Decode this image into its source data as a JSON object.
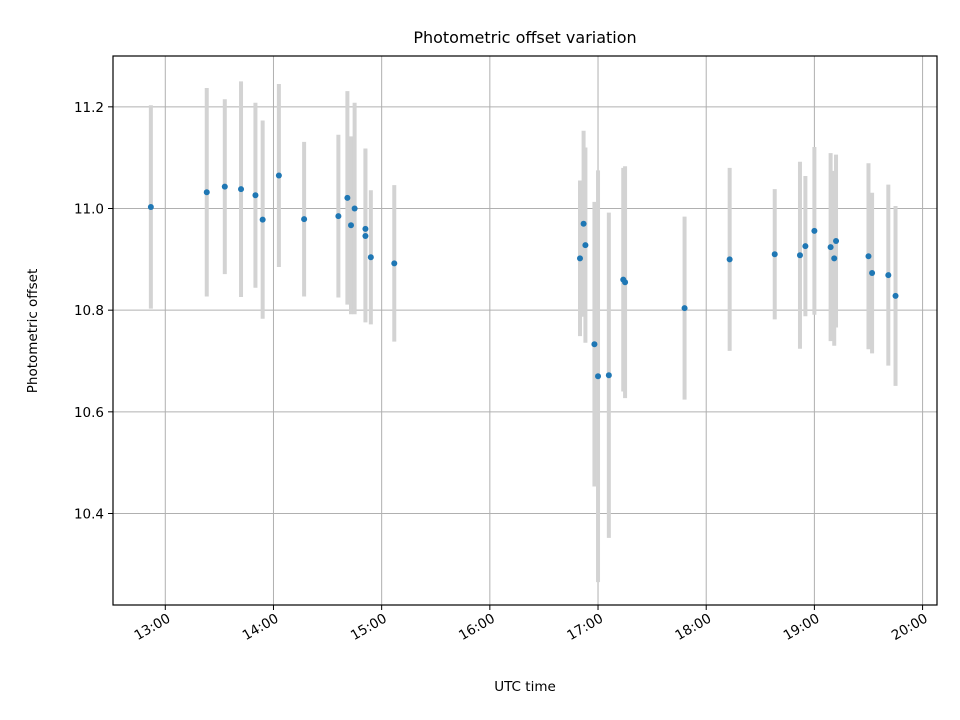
{
  "chart_data": {
    "type": "scatter",
    "title": "Photometric offset variation",
    "xlabel": "UTC time",
    "ylabel": "Photometric offset",
    "x_ticks": [
      "13:00",
      "14:00",
      "15:00",
      "16:00",
      "17:00",
      "18:00",
      "19:00",
      "20:00"
    ],
    "y_ticks": [
      "10.4",
      "10.6",
      "10.8",
      "11.0",
      "11.2"
    ],
    "xlim": [
      "12:31",
      "20:08"
    ],
    "ylim": [
      10.22,
      11.3
    ],
    "grid": true,
    "colors": {
      "points": "#1f77b4",
      "errorbars": "#d3d3d3",
      "grid": "#b0b0b0"
    },
    "points": [
      {
        "x": "12:52",
        "y": 11.003,
        "err": 0.2
      },
      {
        "x": "13:23",
        "y": 11.032,
        "err": 0.205
      },
      {
        "x": "13:33",
        "y": 11.043,
        "err": 0.172
      },
      {
        "x": "13:42",
        "y": 11.038,
        "err": 0.212
      },
      {
        "x": "13:50",
        "y": 11.026,
        "err": 0.182
      },
      {
        "x": "13:54",
        "y": 10.978,
        "err": 0.195
      },
      {
        "x": "14:03",
        "y": 11.065,
        "err": 0.18
      },
      {
        "x": "14:17",
        "y": 10.979,
        "err": 0.152
      },
      {
        "x": "14:36",
        "y": 10.985,
        "err": 0.16
      },
      {
        "x": "14:41",
        "y": 11.021,
        "err": 0.21
      },
      {
        "x": "14:43",
        "y": 10.967,
        "err": 0.175
      },
      {
        "x": "14:45",
        "y": 11.0,
        "err": 0.208
      },
      {
        "x": "14:51",
        "y": 10.96,
        "err": 0.158
      },
      {
        "x": "14:51",
        "y": 10.946,
        "err": 0.17
      },
      {
        "x": "14:54",
        "y": 10.904,
        "err": 0.132
      },
      {
        "x": "15:07",
        "y": 10.892,
        "err": 0.154
      },
      {
        "x": "16:50",
        "y": 10.902,
        "err": 0.153
      },
      {
        "x": "16:52",
        "y": 10.97,
        "err": 0.183
      },
      {
        "x": "16:53",
        "y": 10.928,
        "err": 0.192
      },
      {
        "x": "16:58",
        "y": 10.733,
        "err": 0.28
      },
      {
        "x": "17:00",
        "y": 10.67,
        "err": 0.405
      },
      {
        "x": "17:06",
        "y": 10.672,
        "err": 0.32
      },
      {
        "x": "17:14",
        "y": 10.86,
        "err": 0.22
      },
      {
        "x": "17:15",
        "y": 10.855,
        "err": 0.228
      },
      {
        "x": "17:48",
        "y": 10.804,
        "err": 0.18
      },
      {
        "x": "18:13",
        "y": 10.9,
        "err": 0.18
      },
      {
        "x": "18:38",
        "y": 10.91,
        "err": 0.128
      },
      {
        "x": "18:52",
        "y": 10.908,
        "err": 0.184
      },
      {
        "x": "18:55",
        "y": 10.926,
        "err": 0.138
      },
      {
        "x": "19:00",
        "y": 10.956,
        "err": 0.165
      },
      {
        "x": "19:09",
        "y": 10.924,
        "err": 0.185
      },
      {
        "x": "19:11",
        "y": 10.902,
        "err": 0.172
      },
      {
        "x": "19:12",
        "y": 10.936,
        "err": 0.17
      },
      {
        "x": "19:30",
        "y": 10.906,
        "err": 0.183
      },
      {
        "x": "19:32",
        "y": 10.873,
        "err": 0.158
      },
      {
        "x": "19:41",
        "y": 10.869,
        "err": 0.178
      },
      {
        "x": "19:45",
        "y": 10.828,
        "err": 0.177
      }
    ]
  }
}
